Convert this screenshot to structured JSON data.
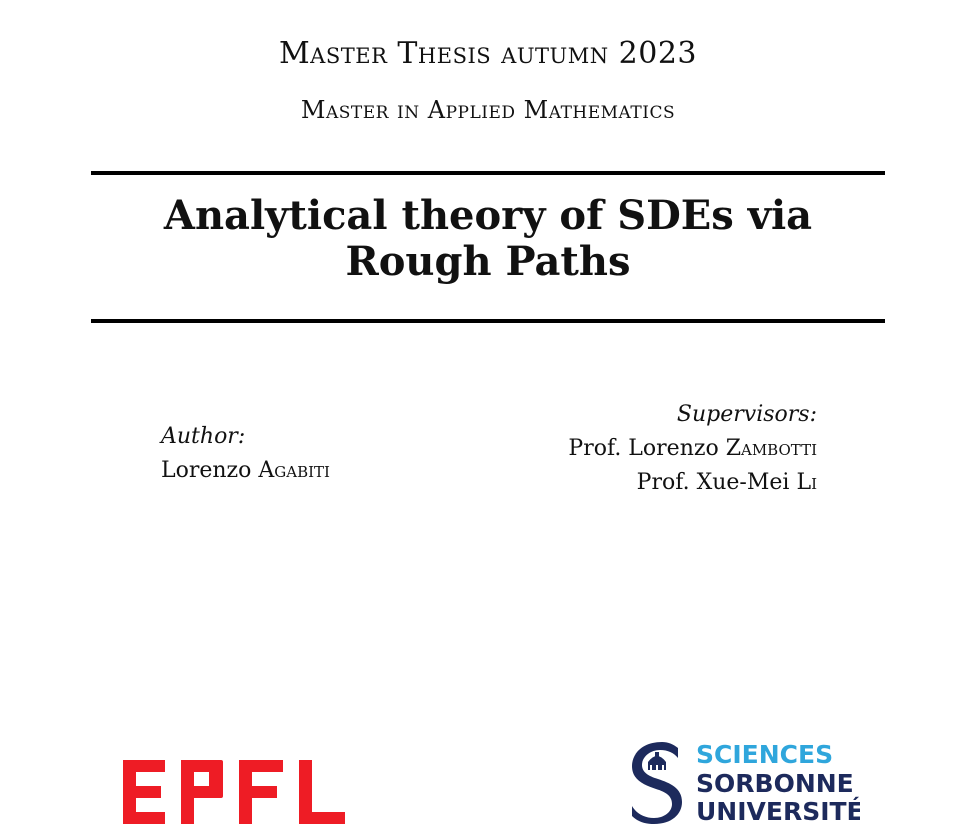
{
  "header": {
    "program_line": "Master Thesis autumn 2023",
    "degree_line": "Master in Applied Mathematics"
  },
  "title": {
    "line1": "Analytical theory of SDEs via",
    "line2": "Rough Paths"
  },
  "author": {
    "label": "Author:",
    "first_name": "Lorenzo",
    "last_name": "Agabiti"
  },
  "supervisors": {
    "label": "Supervisors:",
    "list": [
      {
        "prefix": "Prof. Lorenzo",
        "last_name": "Zambotti"
      },
      {
        "prefix": "Prof. Xue-Mei",
        "last_name": "Li"
      }
    ]
  },
  "logos": {
    "epfl": {
      "text": "EPFL",
      "color": "#ee1c25"
    },
    "sorbonne": {
      "line1": "SCIENCES",
      "line2": "SORBONNE",
      "line3": "UNIVERSITÉ",
      "color_light": "#2fa6dc",
      "color_dark": "#1d2a5c"
    }
  }
}
